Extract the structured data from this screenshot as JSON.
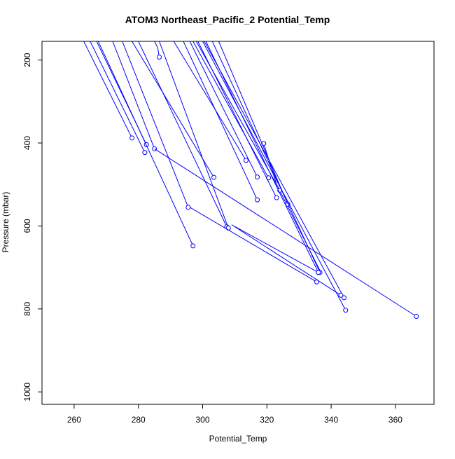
{
  "chart_data": {
    "type": "line",
    "title": "ATOM3 Northeast_Pacific_2 Potential_Temp",
    "xlabel": "Potential_Temp",
    "ylabel": "Pressure (mbar)",
    "xlim": [
      250,
      372
    ],
    "ylim": [
      1030,
      155
    ],
    "y_reversed": true,
    "grid": false,
    "x_ticks": [
      260,
      280,
      300,
      320,
      340,
      360
    ],
    "y_ticks": [
      200,
      400,
      600,
      800,
      1000
    ],
    "series": [
      {
        "values": [
          [
            278.0,
            388
          ],
          [
            263.0,
            155
          ]
        ]
      },
      {
        "values": [
          [
            282.0,
            423
          ],
          [
            265.0,
            155
          ]
        ]
      },
      {
        "values": [
          [
            282.5,
            404
          ],
          [
            267.0,
            155
          ]
        ]
      },
      {
        "values": [
          [
            285.0,
            414
          ],
          [
            272.0,
            155
          ]
        ]
      },
      {
        "values": [
          [
            297.0,
            648
          ],
          [
            267.5,
            155
          ]
        ]
      },
      {
        "values": [
          [
            295.5,
            555
          ],
          [
            275.0,
            155
          ]
        ]
      },
      {
        "values": [
          [
            303.5,
            483
          ],
          [
            278.0,
            155
          ]
        ]
      },
      {
        "values": [
          [
            307.5,
            602
          ],
          [
            280.0,
            155
          ]
        ]
      },
      {
        "values": [
          [
            286.5,
            193
          ],
          [
            286.0,
            170
          ],
          [
            285.0,
            155
          ]
        ]
      },
      {
        "values": [
          [
            308.0,
            605
          ],
          [
            286.5,
            155
          ]
        ]
      },
      {
        "values": [
          [
            313.5,
            442
          ],
          [
            291.0,
            155
          ]
        ]
      },
      {
        "values": [
          [
            317.0,
            537
          ],
          [
            294.0,
            155
          ]
        ]
      },
      {
        "values": [
          [
            317.0,
            482
          ],
          [
            296.0,
            155
          ]
        ]
      },
      {
        "values": [
          [
            319.0,
            401
          ],
          [
            323.0,
            500
          ],
          [
            337.0,
            715
          ]
        ]
      },
      {
        "values": [
          [
            320.5,
            484
          ],
          [
            297.0,
            155
          ]
        ]
      },
      {
        "values": [
          [
            323.0,
            532
          ],
          [
            298.5,
            155
          ]
        ]
      },
      {
        "values": [
          [
            324.0,
            514
          ],
          [
            298.0,
            155
          ]
        ]
      },
      {
        "values": [
          [
            326.5,
            548
          ],
          [
            305.0,
            155
          ]
        ]
      },
      {
        "values": [
          [
            344.5,
            803
          ],
          [
            300.0,
            155
          ]
        ]
      },
      {
        "values": [
          [
            344.0,
            773
          ],
          [
            300.5,
            155
          ]
        ]
      },
      {
        "values": [
          [
            336.0,
            712
          ],
          [
            301.0,
            155
          ]
        ]
      },
      {
        "values": [
          [
            336.5,
            712
          ],
          [
            303.0,
            155
          ]
        ]
      },
      {
        "values": [
          [
            366.5,
            818
          ],
          [
            285.0,
            414
          ]
        ]
      },
      {
        "values": [
          [
            335.5,
            735
          ],
          [
            296.0,
            555
          ]
        ]
      },
      {
        "values": [
          [
            336.0,
            712
          ],
          [
            309.0,
            597
          ]
        ]
      },
      {
        "values": [
          [
            343.0,
            767
          ],
          [
            310.0,
            602
          ]
        ]
      }
    ]
  },
  "colors": {
    "series": "#0000ff",
    "axis": "#000000"
  }
}
